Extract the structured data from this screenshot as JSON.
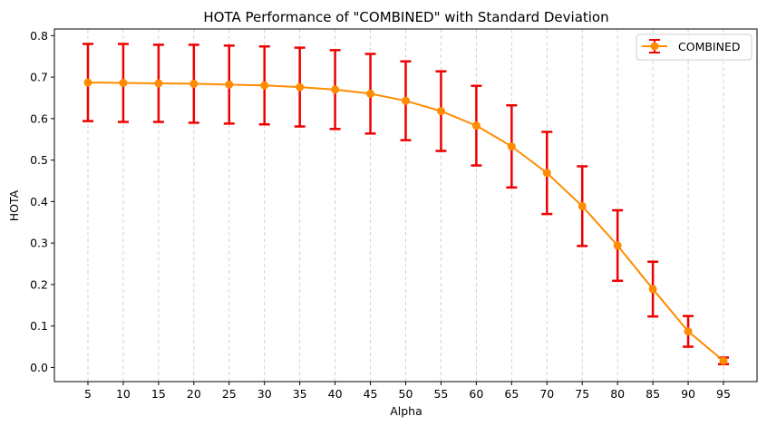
{
  "chart_data": {
    "type": "line",
    "title": "HOTA Performance of \"COMBINED\" with Standard Deviation",
    "xlabel": "Alpha",
    "ylabel": "HOTA",
    "x": [
      5,
      10,
      15,
      20,
      25,
      30,
      35,
      40,
      45,
      50,
      55,
      60,
      65,
      70,
      75,
      80,
      85,
      90,
      95
    ],
    "series": [
      {
        "name": "COMBINED",
        "values": [
          0.687,
          0.686,
          0.685,
          0.684,
          0.682,
          0.68,
          0.676,
          0.67,
          0.66,
          0.643,
          0.618,
          0.583,
          0.533,
          0.469,
          0.389,
          0.294,
          0.189,
          0.087,
          0.016
        ],
        "errors": [
          0.093,
          0.094,
          0.093,
          0.094,
          0.094,
          0.094,
          0.095,
          0.095,
          0.096,
          0.095,
          0.096,
          0.096,
          0.099,
          0.099,
          0.096,
          0.085,
          0.066,
          0.037,
          0.008
        ],
        "line_color": "#ff8c00",
        "error_color": "#ee0000"
      }
    ],
    "xticks": [
      "5",
      "10",
      "15",
      "20",
      "25",
      "30",
      "35",
      "40",
      "45",
      "50",
      "55",
      "60",
      "65",
      "70",
      "75",
      "80",
      "85",
      "90",
      "95"
    ],
    "yticks": [
      "0.0",
      "0.1",
      "0.2",
      "0.3",
      "0.4",
      "0.5",
      "0.6",
      "0.7",
      "0.8"
    ],
    "xlim": [
      0.25,
      99.75
    ],
    "ylim": [
      -0.034,
      0.816
    ],
    "grid": "vertical dashed",
    "legend": "top-right"
  }
}
